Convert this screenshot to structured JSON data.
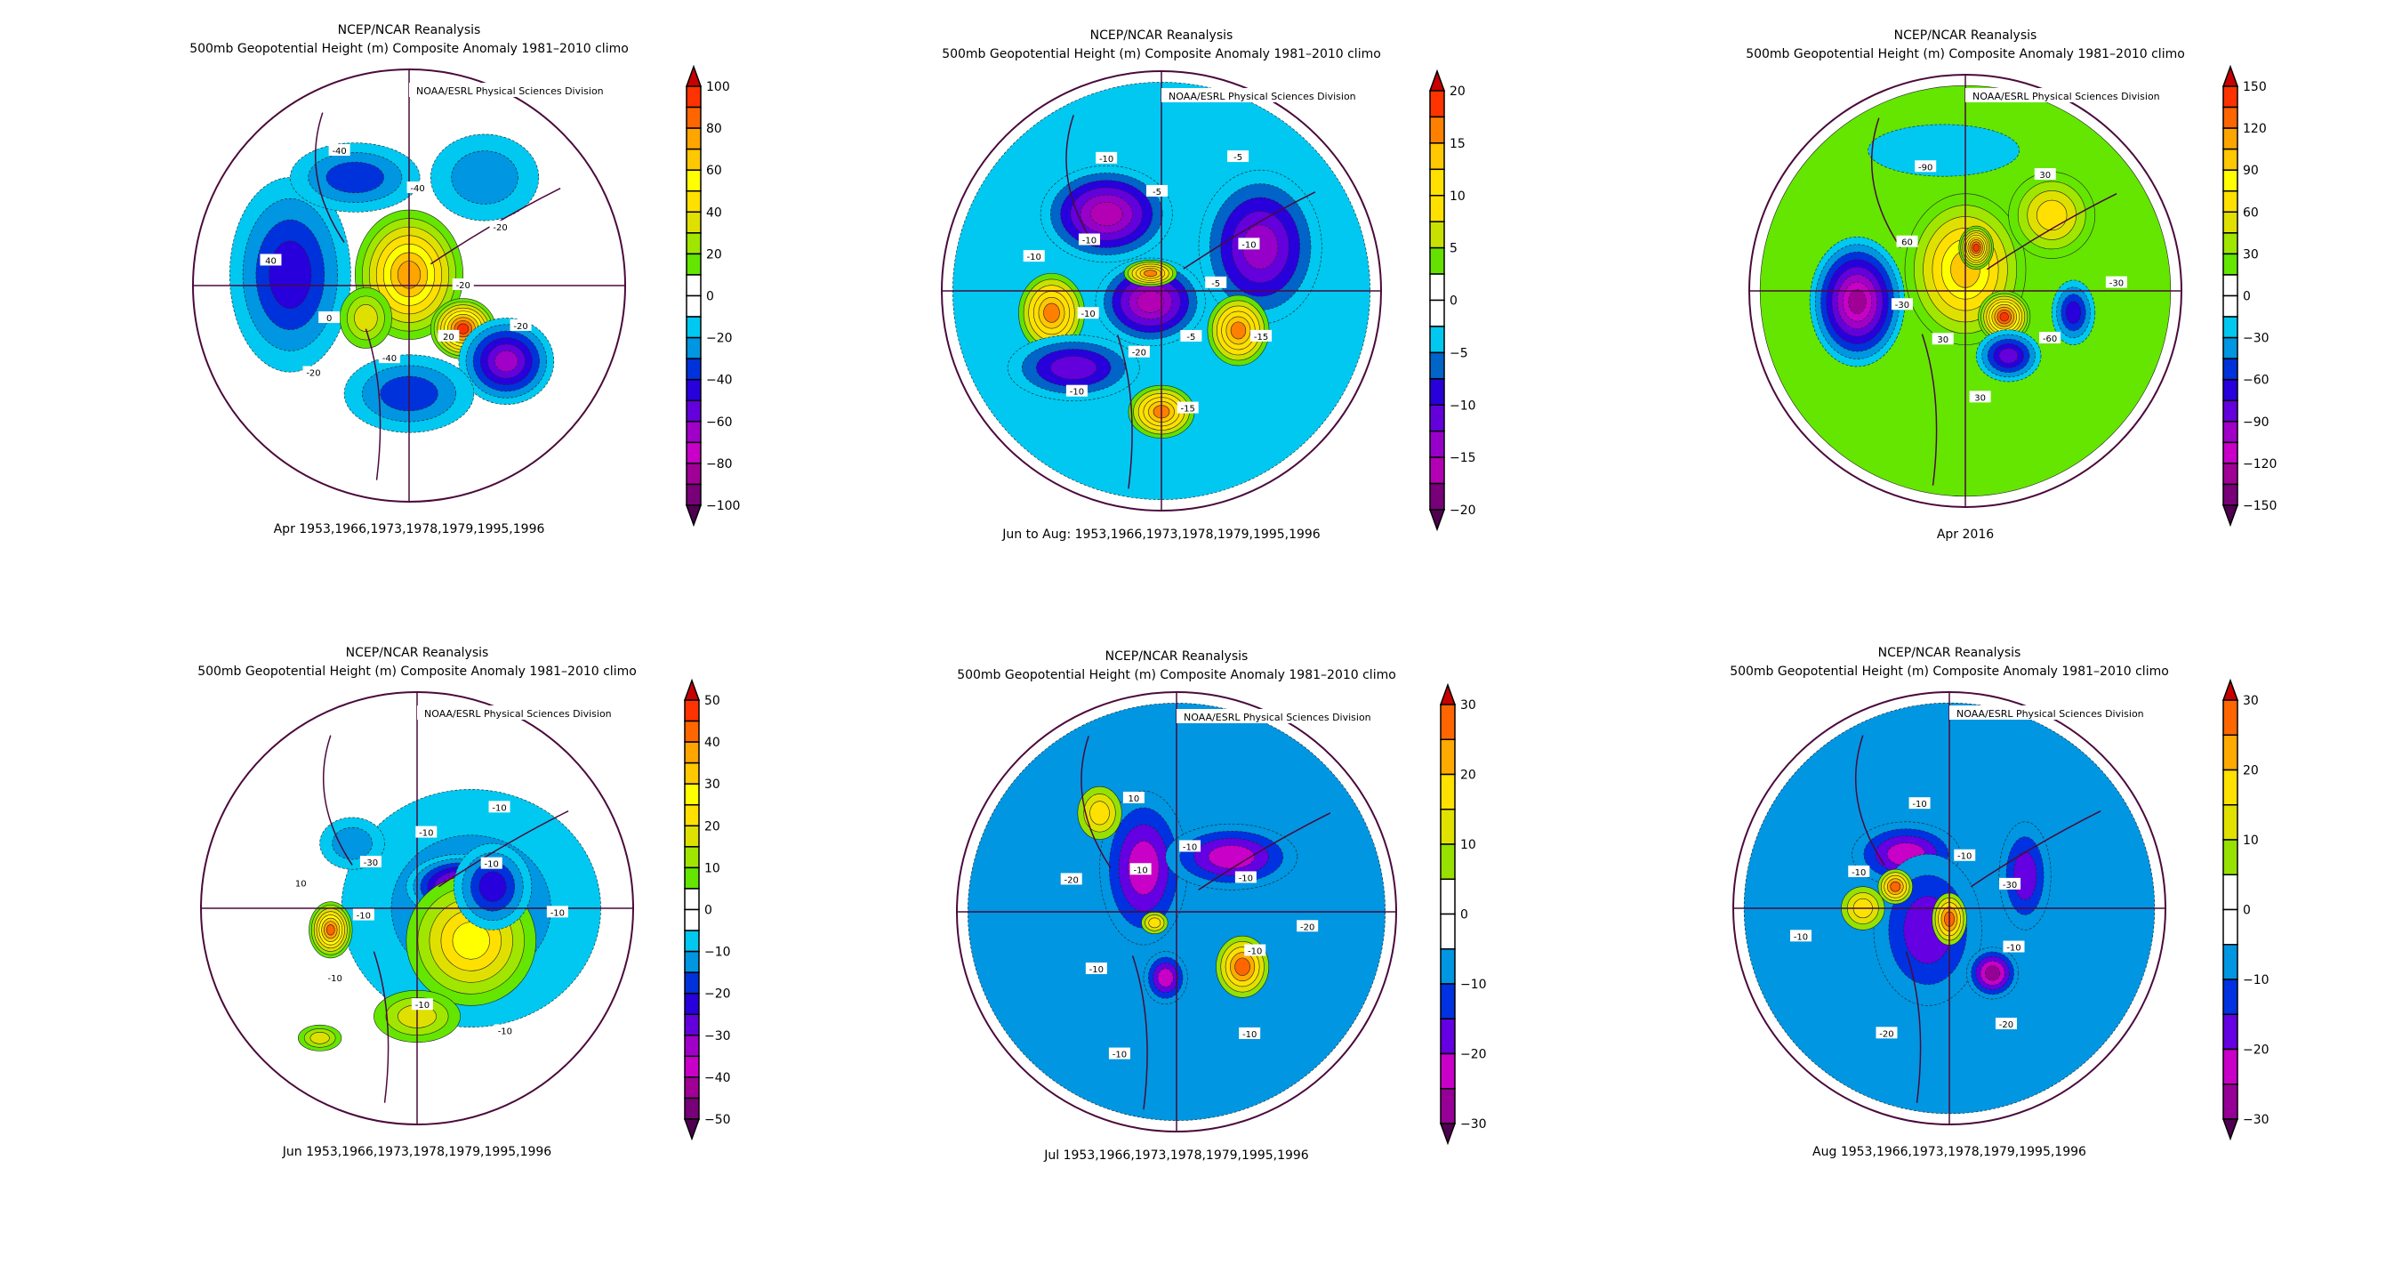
{
  "chart_data": [
    {
      "type": "heatmap",
      "title": "NCEP/NCAR Reanalysis",
      "subtitle": "500mb Geopotential Height (m) Composite Anomaly 1981–2010 climo",
      "credit": "NOAA/ESRL Physical Sciences Division",
      "caption": "Apr 1953,1966,1973,1978,1979,1995,1996",
      "colorbar": {
        "range": [
          -100,
          100
        ],
        "step": 10,
        "tick_labels": [
          "100",
          "80",
          "60",
          "40",
          "20",
          "0",
          "−20",
          "−40",
          "−60",
          "−80",
          "−100"
        ],
        "colors": [
          "#ff3300",
          "#ff6600",
          "#ffa500",
          "#ffc800",
          "#ffff00",
          "#ffe000",
          "#e0e000",
          "#a0e600",
          "#64e600",
          "#ffffff",
          "#ffffff",
          "#00c8f0",
          "#0096e1",
          "#0032dc",
          "#2800dc",
          "#6400dc",
          "#a000c8",
          "#c800c8",
          "#a00096",
          "#780078"
        ]
      },
      "contour_labels": [
        "-20",
        "-20",
        "-40",
        "20",
        "40",
        "-20",
        "-40",
        "-40",
        "-20",
        "0"
      ]
    },
    {
      "type": "heatmap",
      "title": "NCEP/NCAR Reanalysis",
      "subtitle": "500mb Geopotential Height (m) Composite Anomaly 1981–2010 climo",
      "credit": "NOAA/ESRL Physical Sciences Division",
      "caption": "Jun to Aug: 1953,1966,1973,1978,1979,1995,1996",
      "colorbar": {
        "range": [
          -20,
          20
        ],
        "step": 2.5,
        "tick_labels": [
          "20",
          "15",
          "10",
          "5",
          "0",
          "−5",
          "−10",
          "−15",
          "−20"
        ],
        "colors": [
          "#ff3300",
          "#ff8000",
          "#ffc800",
          "#ffe100",
          "#ffe100",
          "#c8e100",
          "#64e100",
          "#ffffff",
          "#ffffff",
          "#00c8f0",
          "#0064c8",
          "#2800dc",
          "#6400dc",
          "#9600c8",
          "#b400b4",
          "#780078"
        ]
      },
      "contour_labels": [
        "-5",
        "-10",
        "-10",
        "-20",
        "-10",
        "-15",
        "-10",
        "-5",
        "-15",
        "-10",
        "-5",
        "-10",
        "-5"
      ]
    },
    {
      "type": "heatmap",
      "title": "NCEP/NCAR Reanalysis",
      "subtitle": "500mb Geopotential Height (m) Composite Anomaly 1981–2010 climo",
      "credit": "NOAA/ESRL Physical Sciences Division",
      "caption": "Apr 2016",
      "colorbar": {
        "range": [
          -150,
          150
        ],
        "step": 15,
        "tick_labels": [
          "150",
          "120",
          "90",
          "60",
          "30",
          "0",
          "−30",
          "−60",
          "−90",
          "−120",
          "−150"
        ],
        "colors": [
          "#ff3300",
          "#ff6600",
          "#ffa500",
          "#ffc800",
          "#ffff00",
          "#ffe000",
          "#e0e000",
          "#a0e600",
          "#64e600",
          "#ffffff",
          "#ffffff",
          "#00c8f0",
          "#0096e1",
          "#0032dc",
          "#2800dc",
          "#6400dc",
          "#a000c8",
          "#c800c8",
          "#a00096",
          "#780078"
        ]
      },
      "contour_labels": [
        "30",
        "-90",
        "-60",
        "-30",
        "30",
        "30",
        "60",
        "-30"
      ]
    },
    {
      "type": "heatmap",
      "title": "NCEP/NCAR Reanalysis",
      "subtitle": "500mb Geopotential Height (m) Composite Anomaly 1981–2010 climo",
      "credit": "NOAA/ESRL Physical Sciences Division",
      "caption": "Jun 1953,1966,1973,1978,1979,1995,1996",
      "colorbar": {
        "range": [
          -50,
          50
        ],
        "step": 5,
        "tick_labels": [
          "50",
          "40",
          "30",
          "20",
          "10",
          "0",
          "−10",
          "−20",
          "−30",
          "−40",
          "−50"
        ],
        "colors": [
          "#ff3300",
          "#ff6600",
          "#ffa500",
          "#ffc800",
          "#ffff00",
          "#ffe000",
          "#e0e000",
          "#a0e600",
          "#64e600",
          "#ffffff",
          "#ffffff",
          "#00c8f0",
          "#0096e1",
          "#0032dc",
          "#2800dc",
          "#6400dc",
          "#a000c8",
          "#c800c8",
          "#a00096",
          "#780078"
        ]
      },
      "contour_labels": [
        "-10",
        "-10",
        "-10",
        "-30",
        "-10",
        "-10",
        "-10",
        "-10",
        "10",
        "-10"
      ]
    },
    {
      "type": "heatmap",
      "title": "NCEP/NCAR Reanalysis",
      "subtitle": "500mb Geopotential Height (m) Composite Anomaly 1981–2010 climo",
      "credit": "NOAA/ESRL Physical Sciences Division",
      "caption": "Jul 1953,1966,1973,1978,1979,1995,1996",
      "colorbar": {
        "range": [
          -30,
          30
        ],
        "step": 5,
        "tick_labels": [
          "30",
          "20",
          "10",
          "0",
          "−10",
          "−20",
          "−30"
        ],
        "colors": [
          "#ff6600",
          "#ffaa00",
          "#ffe100",
          "#e1e100",
          "#96e100",
          "#ffffff",
          "#ffffff",
          "#0096e1",
          "#0032e1",
          "#6400e1",
          "#c800c8",
          "#960096"
        ]
      },
      "contour_labels": [
        "-10",
        "-20",
        "-10",
        "-10",
        "-10",
        "-20",
        "-10",
        "-10",
        "10",
        "-10"
      ]
    },
    {
      "type": "heatmap",
      "title": "NCEP/NCAR Reanalysis",
      "subtitle": "500mb Geopotential Height (m) Composite Anomaly 1981–2010 climo",
      "credit": "NOAA/ESRL Physical Sciences Division",
      "caption": "Aug 1953,1966,1973,1978,1979,1995,1996",
      "colorbar": {
        "range": [
          -30,
          30
        ],
        "step": 5,
        "tick_labels": [
          "30",
          "20",
          "10",
          "0",
          "−10",
          "−20",
          "−30"
        ],
        "colors": [
          "#ff6600",
          "#ffaa00",
          "#ffe100",
          "#e1e100",
          "#96e100",
          "#ffffff",
          "#ffffff",
          "#0096e1",
          "#0032e1",
          "#6400e1",
          "#c800c8",
          "#960096"
        ]
      },
      "contour_labels": [
        "-10",
        "-20",
        "-10",
        "-30",
        "-20",
        "-10",
        "-10",
        "-10"
      ]
    }
  ],
  "colors": {
    "arrow_top": "#c80000",
    "arrow_bottom": "#500050",
    "coastline": "#4b0a3c"
  }
}
